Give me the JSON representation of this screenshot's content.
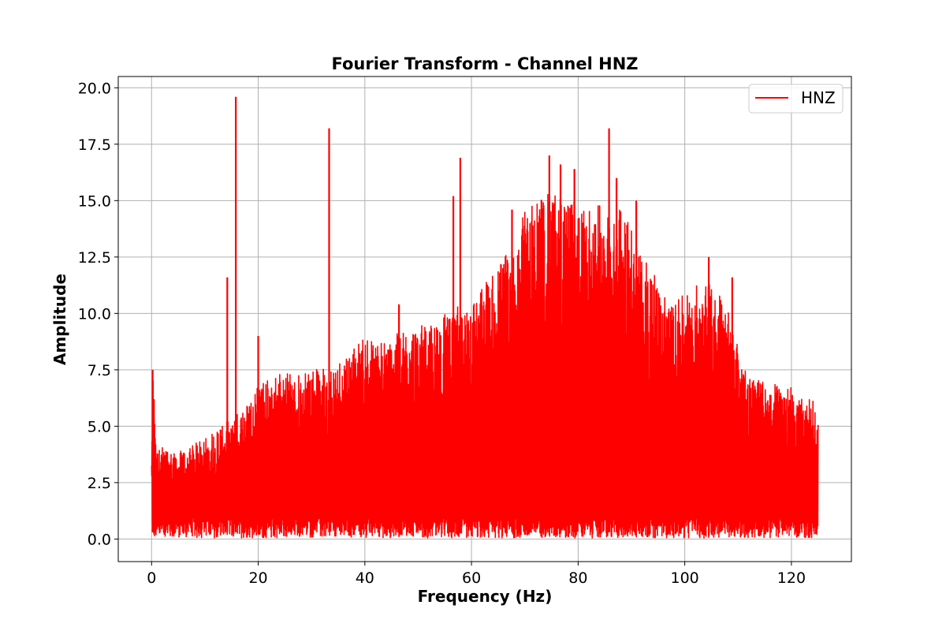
{
  "chart_data": {
    "type": "line",
    "title": "Fourier Transform - Channel HNZ",
    "xlabel": "Frequency (Hz)",
    "ylabel": "Amplitude",
    "xlim": [
      -6.25,
      131.25
    ],
    "ylim": [
      -1.0,
      20.5
    ],
    "x_ticks": [
      0,
      20,
      40,
      60,
      80,
      100,
      120
    ],
    "y_ticks": [
      0.0,
      2.5,
      5.0,
      7.5,
      10.0,
      12.5,
      15.0,
      17.5,
      20.0
    ],
    "x_tick_labels": [
      "0",
      "20",
      "40",
      "60",
      "80",
      "100",
      "120"
    ],
    "y_tick_labels": [
      "0.0",
      "2.5",
      "5.0",
      "7.5",
      "10.0",
      "12.5",
      "15.0",
      "17.5",
      "20.0"
    ],
    "grid": true,
    "legend_position": "top-right",
    "series": [
      {
        "name": "HNZ",
        "color": "#ff0000",
        "x_range": [
          0,
          125
        ],
        "envelope": {
          "x": [
            0,
            0.3,
            1,
            2,
            4,
            6,
            8,
            10,
            12,
            13,
            14,
            15,
            17,
            19,
            20,
            22,
            24,
            26,
            28,
            30,
            32,
            34,
            36,
            38,
            40,
            42,
            44,
            46,
            48,
            50,
            52,
            54,
            56,
            58,
            60,
            62,
            64,
            66,
            68,
            70,
            72,
            74,
            76,
            78,
            80,
            82,
            84,
            86,
            88,
            90,
            92,
            94,
            96,
            98,
            100,
            102,
            104,
            106,
            108,
            110,
            112,
            114,
            116,
            118,
            120,
            122,
            124,
            125
          ],
          "y": [
            3.6,
            7.5,
            3.9,
            4.1,
            3.9,
            3.9,
            4.2,
            4.6,
            4.8,
            5.1,
            5.2,
            5.3,
            5.8,
            6.3,
            7.0,
            7.1,
            7.4,
            7.4,
            7.3,
            7.5,
            7.6,
            7.6,
            8.2,
            8.5,
            9.0,
            8.8,
            8.8,
            9.1,
            9.3,
            9.5,
            9.4,
            9.6,
            10.4,
            10.3,
            10.5,
            11.3,
            11.8,
            12.5,
            13.3,
            14.5,
            15.2,
            15.3,
            15.4,
            15.2,
            14.8,
            14.6,
            14.8,
            15.0,
            14.6,
            13.9,
            12.9,
            12.0,
            11.0,
            10.4,
            10.9,
            11.2,
            11.8,
            11.0,
            10.3,
            8.6,
            7.3,
            7.0,
            7.1,
            6.8,
            6.7,
            6.3,
            6.2,
            5.2
          ]
        },
        "peaks": [
          {
            "x": 0.2,
            "y": 7.5
          },
          {
            "x": 14.2,
            "y": 11.6
          },
          {
            "x": 15.8,
            "y": 19.6
          },
          {
            "x": 20.0,
            "y": 9.0
          },
          {
            "x": 33.3,
            "y": 18.2
          },
          {
            "x": 46.4,
            "y": 10.4
          },
          {
            "x": 56.6,
            "y": 15.2
          },
          {
            "x": 57.9,
            "y": 16.9
          },
          {
            "x": 67.6,
            "y": 14.6
          },
          {
            "x": 74.6,
            "y": 17.0
          },
          {
            "x": 76.7,
            "y": 16.6
          },
          {
            "x": 79.3,
            "y": 16.4
          },
          {
            "x": 85.8,
            "y": 18.2
          },
          {
            "x": 87.2,
            "y": 16.0
          },
          {
            "x": 90.9,
            "y": 15.0
          },
          {
            "x": 104.5,
            "y": 12.5
          },
          {
            "x": 108.9,
            "y": 11.6
          }
        ]
      }
    ]
  }
}
